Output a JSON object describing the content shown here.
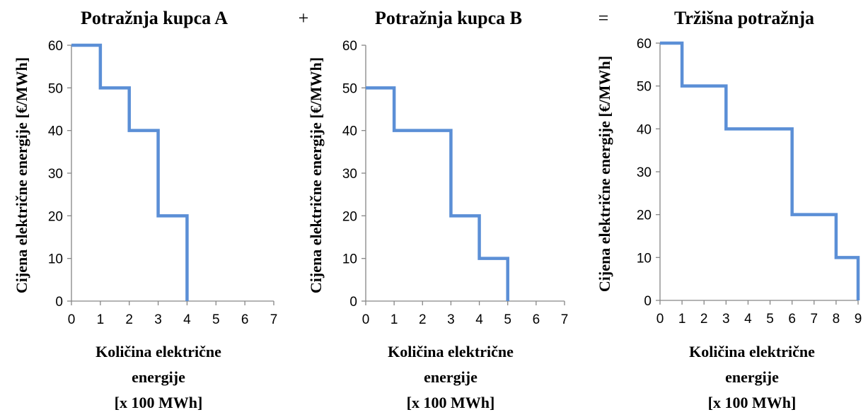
{
  "operators": [
    "+",
    "="
  ],
  "chart_data": [
    {
      "type": "line",
      "step": true,
      "title": "Potražnja kupca A",
      "xlabel": [
        "Količina električne",
        "energije",
        "[x 100 MWh]"
      ],
      "ylabel": "Cijena električne energije [€/MWh]",
      "xlim": [
        0,
        7
      ],
      "ylim": [
        0,
        60
      ],
      "xticks": [
        0,
        1,
        2,
        3,
        4,
        5,
        6,
        7
      ],
      "yticks": [
        0,
        10,
        20,
        30,
        40,
        50,
        60
      ],
      "color": "#5B8FD6",
      "x": [
        0,
        1,
        1,
        2,
        2,
        3,
        3,
        4,
        4
      ],
      "y": [
        60,
        60,
        50,
        50,
        40,
        40,
        20,
        20,
        0
      ]
    },
    {
      "type": "line",
      "step": true,
      "title": "Potražnja kupca B",
      "xlabel": [
        "Količina električne",
        "energije",
        "[x 100 MWh]"
      ],
      "ylabel": "Cijena električne energije [€/MWh]",
      "xlim": [
        0,
        7
      ],
      "ylim": [
        0,
        60
      ],
      "xticks": [
        0,
        1,
        2,
        3,
        4,
        5,
        6,
        7
      ],
      "yticks": [
        0,
        10,
        20,
        30,
        40,
        50,
        60
      ],
      "color": "#5B8FD6",
      "x": [
        0,
        1,
        1,
        3,
        3,
        4,
        4,
        5,
        5
      ],
      "y": [
        50,
        50,
        40,
        40,
        20,
        20,
        10,
        10,
        0
      ]
    },
    {
      "type": "line",
      "step": true,
      "title": "Tržišna potražnja",
      "xlabel": [
        "Količina električne",
        "energije",
        "[x 100 MWh]"
      ],
      "ylabel": "Cijena električne energije [€/MWh]",
      "xlim": [
        0,
        9
      ],
      "ylim": [
        0,
        60
      ],
      "xticks": [
        0,
        1,
        2,
        3,
        4,
        5,
        6,
        7,
        8,
        9
      ],
      "yticks": [
        0,
        10,
        20,
        30,
        40,
        50,
        60
      ],
      "color": "#5B8FD6",
      "x": [
        0,
        1,
        1,
        3,
        3,
        6,
        6,
        8,
        8,
        9,
        9
      ],
      "y": [
        60,
        60,
        50,
        50,
        40,
        40,
        20,
        20,
        10,
        10,
        0
      ]
    }
  ]
}
